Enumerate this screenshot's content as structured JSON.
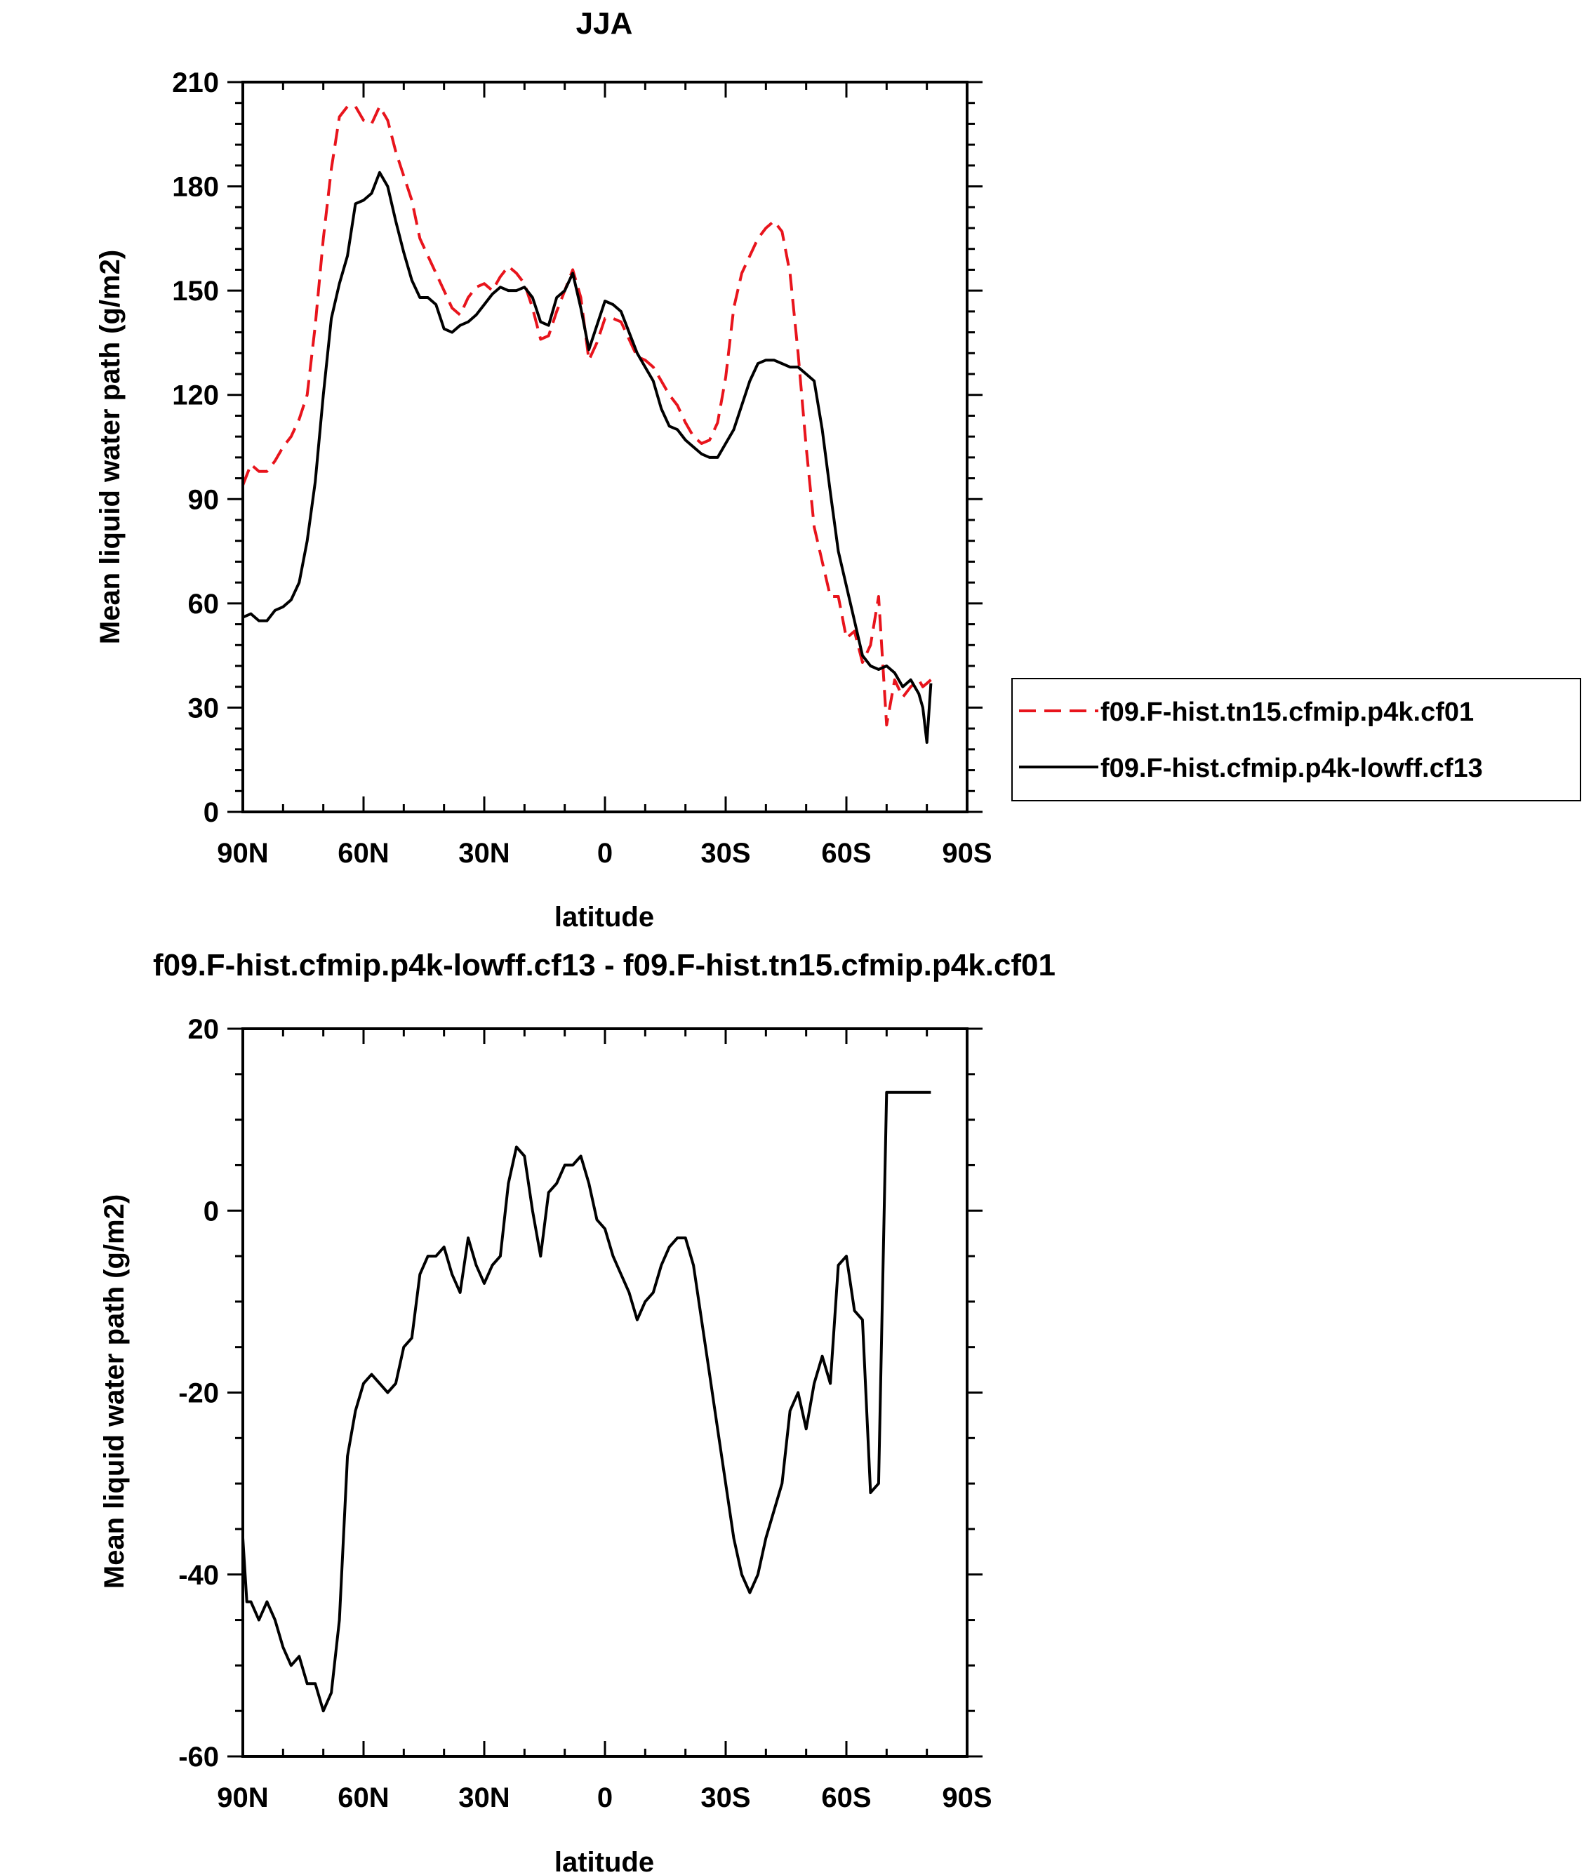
{
  "chart_data": [
    {
      "type": "line",
      "title": "JJA",
      "xlabel": "latitude",
      "ylabel": "Mean liquid water path (g/m2)",
      "xlim": [
        90,
        -90
      ],
      "ylim": [
        0,
        210
      ],
      "xticks": [
        90,
        60,
        30,
        0,
        -30,
        -60,
        -90
      ],
      "xtick_labels": [
        "90N",
        "60N",
        "30N",
        "0",
        "30S",
        "60S",
        "90S"
      ],
      "yticks": [
        0,
        30,
        60,
        90,
        120,
        150,
        180,
        210
      ],
      "ytick_labels": [
        "0",
        "30",
        "60",
        "90",
        "120",
        "150",
        "180",
        "210"
      ],
      "grid": false,
      "legend_position": "right",
      "series": [
        {
          "name": "f09.F-hist.tn15.cfmip.p4k.cf01",
          "color": "#e8141c",
          "dash": "dashed",
          "x": [
            90,
            88,
            86,
            84,
            82,
            80,
            78,
            76,
            74,
            72,
            70,
            68,
            66,
            64,
            62,
            60,
            58,
            56,
            54,
            52,
            50,
            48,
            46,
            44,
            42,
            40,
            38,
            36,
            34,
            32,
            30,
            28,
            26,
            24,
            22,
            20,
            18,
            16,
            14,
            12,
            10,
            8,
            6,
            4,
            2,
            0,
            -2,
            -4,
            -6,
            -8,
            -10,
            -12,
            -14,
            -16,
            -18,
            -20,
            -22,
            -24,
            -26,
            -28,
            -30,
            -32,
            -34,
            -36,
            -38,
            -40,
            -42,
            -44,
            -46,
            -48,
            -50,
            -52,
            -54,
            -56,
            -58,
            -60,
            -62,
            -64,
            -66,
            -68,
            -70,
            -72,
            -74,
            -76,
            -78,
            -79,
            -80,
            -81
          ],
          "y": [
            94,
            100,
            98,
            98,
            101,
            105,
            108,
            113,
            120,
            140,
            165,
            185,
            200,
            203,
            203,
            199,
            198,
            203,
            199,
            190,
            183,
            176,
            165,
            160,
            155,
            150,
            145,
            143,
            148,
            151,
            152,
            150,
            154,
            157,
            155,
            152,
            145,
            136,
            137,
            144,
            150,
            156,
            148,
            130,
            135,
            142,
            142,
            141,
            136,
            131,
            130,
            128,
            124,
            120,
            117,
            112,
            108,
            106,
            107,
            112,
            125,
            145,
            155,
            160,
            165,
            168,
            170,
            167,
            155,
            132,
            105,
            82,
            72,
            62,
            62,
            50,
            52,
            43,
            48,
            62,
            25,
            38,
            33,
            36,
            38,
            36,
            37,
            38
          ],
          "y_note": ""
        },
        {
          "name": "f09.F-hist.cfmip.p4k-lowff.cf13",
          "color": "#000000",
          "dash": "solid",
          "x": [
            90,
            88,
            86,
            84,
            82,
            80,
            78,
            76,
            74,
            72,
            70,
            68,
            66,
            64,
            62,
            60,
            58,
            56,
            54,
            52,
            50,
            48,
            46,
            44,
            42,
            40,
            38,
            36,
            34,
            32,
            30,
            28,
            26,
            24,
            22,
            20,
            18,
            16,
            14,
            12,
            10,
            8,
            6,
            4,
            2,
            0,
            -2,
            -4,
            -6,
            -8,
            -10,
            -12,
            -14,
            -16,
            -18,
            -20,
            -22,
            -24,
            -26,
            -28,
            -30,
            -32,
            -34,
            -36,
            -38,
            -40,
            -42,
            -44,
            -46,
            -48,
            -50,
            -52,
            -54,
            -56,
            -58,
            -60,
            -62,
            -64,
            -66,
            -68,
            -70,
            -72,
            -74,
            -76,
            -78,
            -79,
            -80,
            -81
          ],
          "y": [
            56,
            57,
            55,
            55,
            58,
            59,
            61,
            66,
            78,
            95,
            120,
            142,
            152,
            160,
            175,
            176,
            178,
            184,
            180,
            170,
            161,
            153,
            148,
            148,
            146,
            139,
            138,
            140,
            141,
            143,
            146,
            149,
            151,
            150,
            150,
            151,
            148,
            141,
            140,
            148,
            150,
            155,
            145,
            133,
            140,
            147,
            146,
            144,
            138,
            132,
            128,
            124,
            116,
            111,
            110,
            107,
            105,
            103,
            102,
            102,
            106,
            110,
            117,
            124,
            129,
            130,
            130,
            129,
            128,
            128,
            126,
            124,
            110,
            92,
            75,
            65,
            55,
            45,
            42,
            41,
            42,
            40,
            36,
            38,
            34,
            30,
            20,
            37
          ]
        }
      ]
    },
    {
      "type": "line",
      "title": "f09.F-hist.cfmip.p4k-lowff.cf13 - f09.F-hist.tn15.cfmip.p4k.cf01",
      "xlabel": "latitude",
      "ylabel": "Mean liquid water path (g/m2)",
      "xlim": [
        90,
        -90
      ],
      "ylim": [
        -60,
        20
      ],
      "xticks": [
        90,
        60,
        30,
        0,
        -30,
        -60,
        -90
      ],
      "xtick_labels": [
        "90N",
        "60N",
        "30N",
        "0",
        "30S",
        "60S",
        "90S"
      ],
      "yticks": [
        -60,
        -40,
        -20,
        0,
        20
      ],
      "ytick_labels": [
        "-60",
        "-40",
        "-20",
        "0",
        "20"
      ],
      "grid": false,
      "series": [
        {
          "color": "#000000",
          "dash": "solid",
          "x": [
            90,
            89,
            88,
            86,
            84,
            82,
            80,
            78,
            76,
            74,
            72,
            70,
            69,
            68,
            66,
            64,
            62,
            60,
            58,
            56,
            54,
            52,
            50,
            48,
            46,
            44,
            42,
            40,
            38,
            36,
            34,
            32,
            30,
            28,
            26,
            24,
            22,
            20,
            18,
            16,
            14,
            12,
            10,
            8,
            6,
            4,
            2,
            0,
            -2,
            -4,
            -6,
            -8,
            -10,
            -12,
            -14,
            -16,
            -18,
            -20,
            -22,
            -24,
            -26,
            -28,
            -30,
            -32,
            -34,
            -36,
            -38,
            -40,
            -42,
            -44,
            -46,
            -48,
            -50,
            -52,
            -54,
            -56,
            -58,
            -60,
            -62,
            -64,
            -66,
            -68,
            -70,
            -72,
            -74,
            -76,
            -78,
            -79,
            -80,
            -81
          ],
          "y": [
            -36,
            -43,
            -43,
            -45,
            -43,
            -45,
            -48,
            -50,
            -49,
            -52,
            -52,
            -55,
            -54,
            -53,
            -45,
            -27,
            -22,
            -19,
            -18,
            -19,
            -20,
            -19,
            -15,
            -14,
            -7,
            -5,
            -5,
            -4,
            -7,
            -9,
            -3,
            -6,
            -8,
            -6,
            -5,
            3,
            7,
            6,
            0,
            -5,
            2,
            3,
            5,
            5,
            6,
            3,
            -1,
            -2,
            -5,
            -7,
            -9,
            -12,
            -10,
            -9,
            -6,
            -4,
            -3,
            -3,
            -6,
            -12,
            -18,
            -24,
            -30,
            -36,
            -40,
            -42,
            -40,
            -36,
            -33,
            -30,
            -22,
            -20,
            -24,
            -19,
            -16,
            -19,
            -6,
            -5,
            -11,
            -12,
            -31,
            -30,
            13,
            13,
            13,
            13,
            13,
            13,
            13,
            13
          ],
          "y_note": ""
        }
      ]
    }
  ]
}
